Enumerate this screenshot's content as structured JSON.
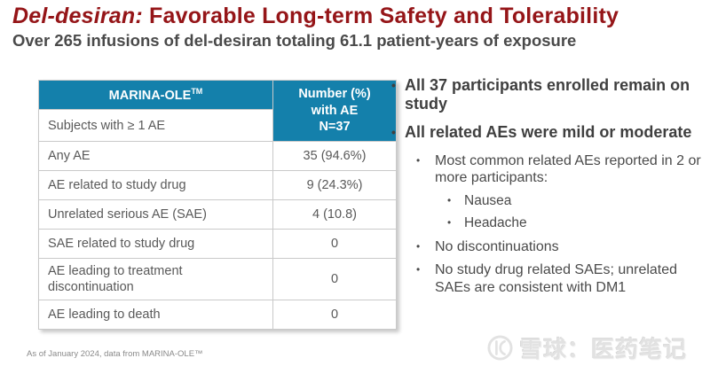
{
  "slide": {
    "title": {
      "emphasis": "Del-desiran:",
      "rest": " Favorable Long-term Safety and Tolerability"
    },
    "subtitle": "Over 265 infusions of del-desiran totaling 61.1 patient-years of exposure",
    "colors": {
      "title_red": "#951518",
      "table_header_blue": "#1480AB",
      "table_text_gray": "#595959",
      "bullet_text_dark": "#3F3F3F",
      "watermark_gray": "#E2E2E2"
    }
  },
  "table": {
    "header_col1": "MARINA-OLE",
    "header_col1_sup": "TM",
    "header_col2_lines": [
      "Number (%)",
      "with AE",
      "N=37"
    ],
    "subheader": "Subjects with ≥ 1 AE",
    "rows": [
      {
        "label": "Any AE",
        "value": "35 (94.6%)"
      },
      {
        "label": "AE related to study drug",
        "value": "9 (24.3%)"
      },
      {
        "label": "Unrelated serious AE (SAE)",
        "value": "4 (10.8)"
      },
      {
        "label": "SAE related to study drug",
        "value": "0"
      },
      {
        "label": "AE leading to treatment discontinuation",
        "value": "0"
      },
      {
        "label": "AE leading to death",
        "value": "0"
      }
    ]
  },
  "bullets": [
    {
      "level": 1,
      "text": "All 37 participants enrolled remain on study"
    },
    {
      "level": 1,
      "text": "All related AEs were mild or moderate"
    },
    {
      "level": 2,
      "text": "Most common related AEs reported in 2 or more participants:"
    },
    {
      "level": 3,
      "text": "Nausea"
    },
    {
      "level": 3,
      "text": "Headache"
    },
    {
      "level": 2,
      "text": "No discontinuations"
    },
    {
      "level": 2,
      "text": "No study drug related SAEs; unrelated SAEs are consistent with DM1"
    }
  ],
  "footer": {
    "note": "As of January 2024, data from MARINA-OLE™"
  },
  "watermark": {
    "text": "雪球：医药笔记"
  }
}
